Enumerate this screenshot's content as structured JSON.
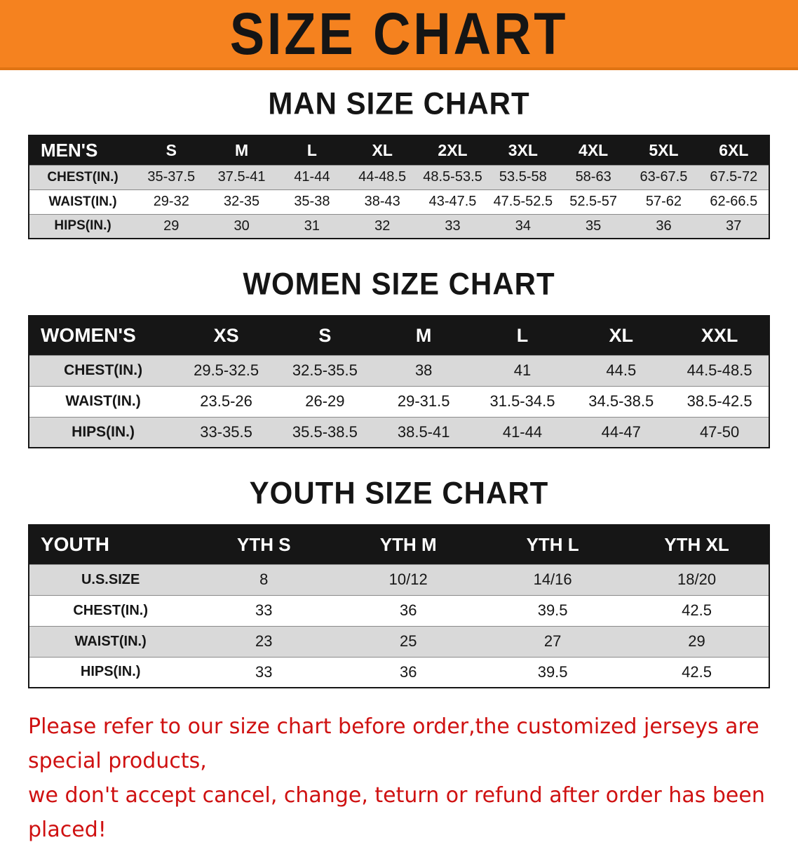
{
  "banner": {
    "title": "SIZE CHART"
  },
  "colors": {
    "banner_bg": "#f5821f",
    "header_bg": "#161616",
    "stripe_gray": "#d9d9d9",
    "disclaimer_red": "#cf1111"
  },
  "tables": {
    "men": {
      "heading": "MAN SIZE CHART",
      "header_label": "MEN'S",
      "columns": [
        "S",
        "M",
        "L",
        "XL",
        "2XL",
        "3XL",
        "4XL",
        "5XL",
        "6XL"
      ],
      "rows": [
        {
          "label": "CHEST(IN.)",
          "values": [
            "35-37.5",
            "37.5-41",
            "41-44",
            "44-48.5",
            "48.5-53.5",
            "53.5-58",
            "58-63",
            "63-67.5",
            "67.5-72"
          ]
        },
        {
          "label": "WAIST(IN.)",
          "values": [
            "29-32",
            "32-35",
            "35-38",
            "38-43",
            "43-47.5",
            "47.5-52.5",
            "52.5-57",
            "57-62",
            "62-66.5"
          ]
        },
        {
          "label": "HIPS(IN.)",
          "values": [
            "29",
            "30",
            "31",
            "32",
            "33",
            "34",
            "35",
            "36",
            "37"
          ]
        }
      ]
    },
    "women": {
      "heading": "WOMEN SIZE CHART",
      "header_label": "WOMEN'S",
      "columns": [
        "XS",
        "S",
        "M",
        "L",
        "XL",
        "XXL"
      ],
      "rows": [
        {
          "label": "CHEST(IN.)",
          "values": [
            "29.5-32.5",
            "32.5-35.5",
            "38",
            "41",
            "44.5",
            "44.5-48.5"
          ]
        },
        {
          "label": "WAIST(IN.)",
          "values": [
            "23.5-26",
            "26-29",
            "29-31.5",
            "31.5-34.5",
            "34.5-38.5",
            "38.5-42.5"
          ]
        },
        {
          "label": "HIPS(IN.)",
          "values": [
            "33-35.5",
            "35.5-38.5",
            "38.5-41",
            "41-44",
            "44-47",
            "47-50"
          ]
        }
      ]
    },
    "youth": {
      "heading": "YOUTH SIZE CHART",
      "header_label": "YOUTH",
      "columns": [
        "YTH S",
        "YTH M",
        "YTH L",
        "YTH XL"
      ],
      "rows": [
        {
          "label": "U.S.SIZE",
          "values": [
            "8",
            "10/12",
            "14/16",
            "18/20"
          ]
        },
        {
          "label": "CHEST(IN.)",
          "values": [
            "33",
            "36",
            "39.5",
            "42.5"
          ]
        },
        {
          "label": "WAIST(IN.)",
          "values": [
            "23",
            "25",
            "27",
            "29"
          ]
        },
        {
          "label": "HIPS(IN.)",
          "values": [
            "33",
            "36",
            "39.5",
            "42.5"
          ]
        }
      ]
    }
  },
  "disclaimer": {
    "line1": "Please refer to our size chart before order,the customized jerseys are special products,",
    "line2": "we don't accept cancel, change, teturn or refund after order has been placed!"
  }
}
